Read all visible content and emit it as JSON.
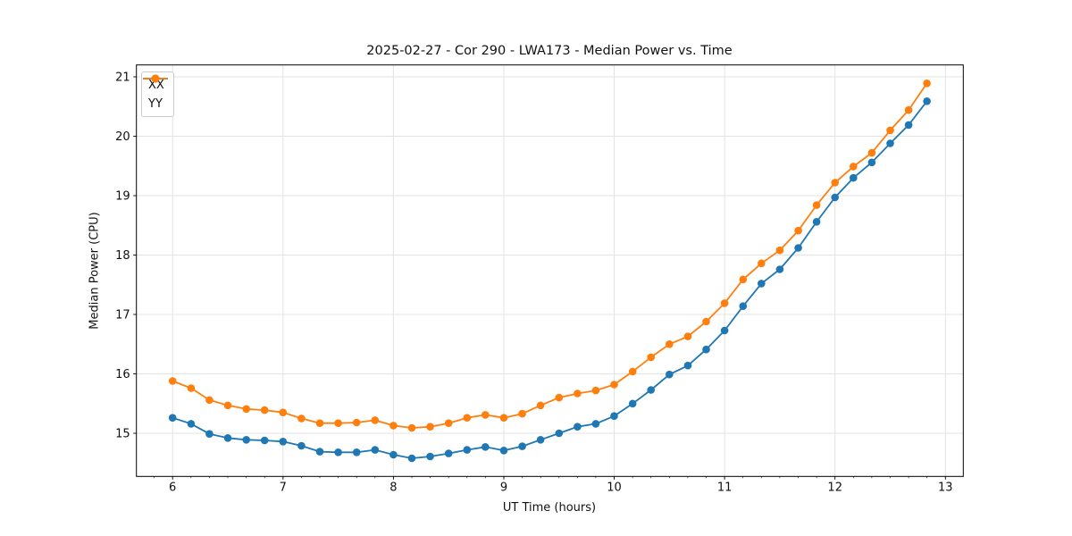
{
  "chart_data": {
    "type": "line",
    "title": "2025-02-27 - Cor 290 - LWA173 - Median Power vs. Time",
    "xlabel": "UT Time (hours)",
    "ylabel": "Median Power (CPU)",
    "xlim": [
      5.672,
      13.162
    ],
    "ylim": [
      14.274,
      21.2
    ],
    "x_ticks": [
      6,
      7,
      8,
      9,
      10,
      11,
      12,
      13
    ],
    "y_ticks": [
      15,
      16,
      17,
      18,
      19,
      20,
      21
    ],
    "x_minor_step": 0.1666667,
    "grid": true,
    "grid_color": "#e3e3e3",
    "legend_position": "upper-left",
    "x": [
      6.0,
      6.167,
      6.333,
      6.5,
      6.667,
      6.833,
      7.0,
      7.167,
      7.333,
      7.5,
      7.667,
      7.833,
      8.0,
      8.167,
      8.333,
      8.5,
      8.667,
      8.833,
      9.0,
      9.167,
      9.333,
      9.5,
      9.667,
      9.833,
      10.0,
      10.167,
      10.333,
      10.5,
      10.667,
      10.833,
      11.0,
      11.167,
      11.333,
      11.5,
      11.667,
      11.833,
      12.0,
      12.167,
      12.333,
      12.5,
      12.667,
      12.833
    ],
    "series": [
      {
        "name": "XX",
        "color": "#1f77b4",
        "values": [
          15.26,
          15.16,
          14.99,
          14.92,
          14.89,
          14.88,
          14.86,
          14.79,
          14.69,
          14.68,
          14.68,
          14.72,
          14.64,
          14.58,
          14.61,
          14.66,
          14.72,
          14.77,
          14.71,
          14.78,
          14.89,
          15.0,
          15.11,
          15.16,
          15.29,
          15.5,
          15.73,
          15.99,
          16.14,
          16.41,
          16.73,
          17.14,
          17.52,
          17.76,
          18.12,
          18.56,
          18.97,
          19.3,
          19.56,
          19.88,
          20.19,
          20.59
        ]
      },
      {
        "name": "YY",
        "color": "#ff7f0e",
        "values": [
          15.88,
          15.76,
          15.56,
          15.47,
          15.41,
          15.39,
          15.35,
          15.25,
          15.17,
          15.17,
          15.18,
          15.22,
          15.13,
          15.09,
          15.11,
          15.17,
          15.26,
          15.31,
          15.26,
          15.33,
          15.47,
          15.6,
          15.67,
          15.72,
          15.82,
          16.04,
          16.28,
          16.5,
          16.63,
          16.88,
          17.19,
          17.59,
          17.86,
          18.08,
          18.41,
          18.84,
          19.22,
          19.49,
          19.72,
          20.1,
          20.44,
          20.89
        ]
      }
    ]
  }
}
